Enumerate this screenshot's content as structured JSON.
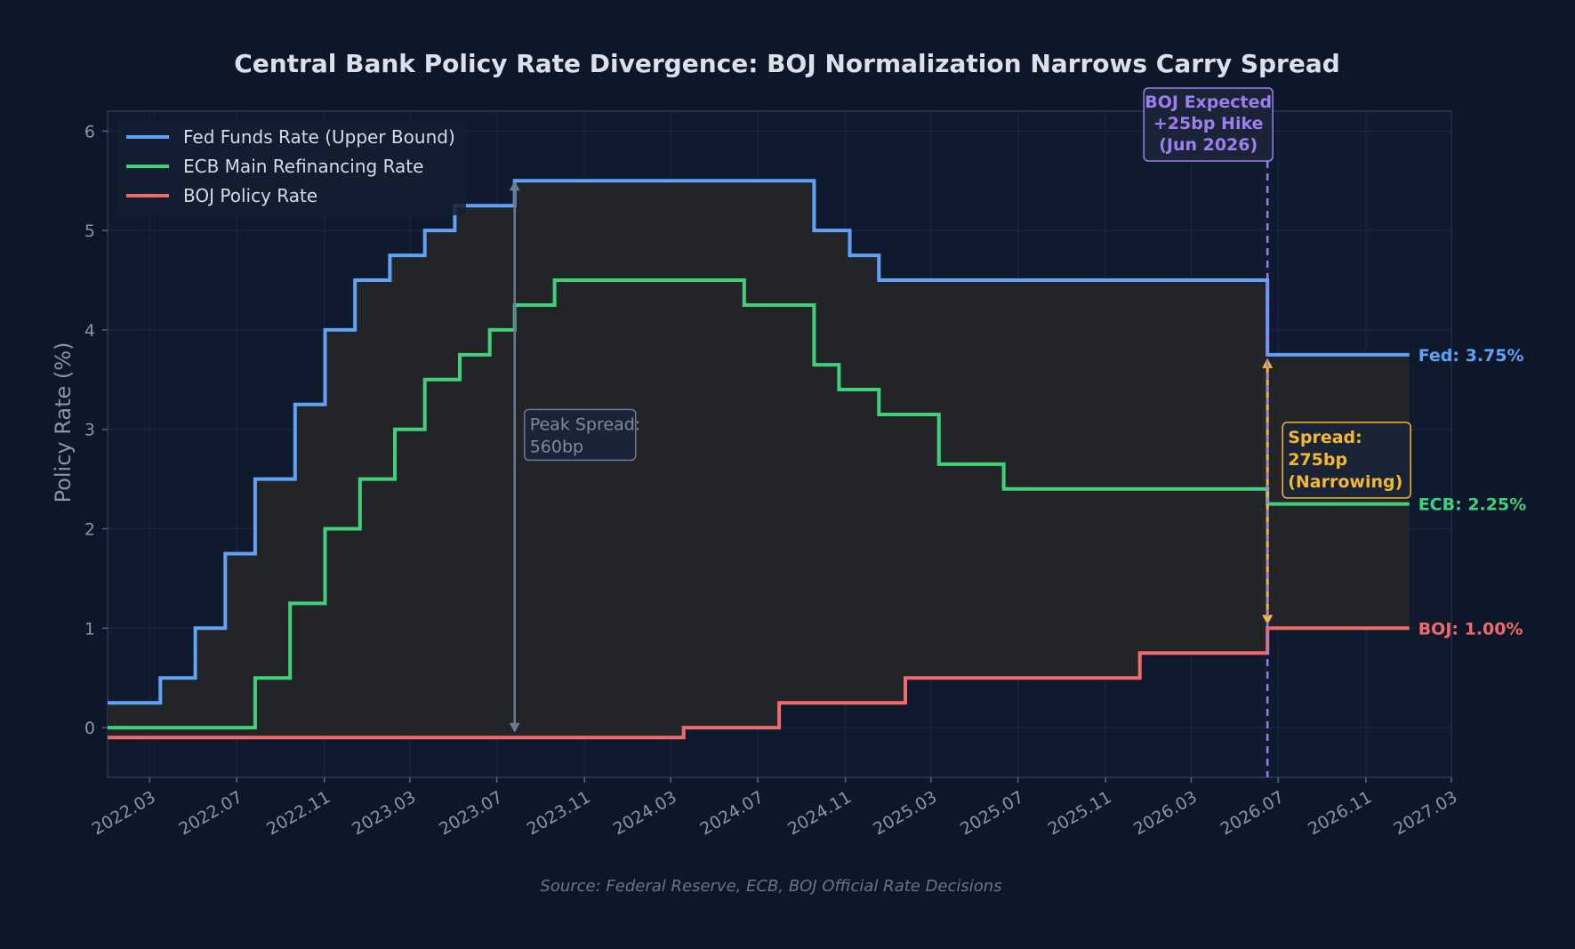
{
  "chart_data": {
    "type": "line",
    "step": "post",
    "title": "Central Bank Policy Rate Divergence: BOJ Normalization Narrows Carry Spread",
    "ylabel": "Policy Rate (%)",
    "xlabel": "",
    "source": "Source: Federal Reserve, ECB, BOJ Official Rate Decisions",
    "xlim": [
      "2022-01-01",
      "2027-03-01"
    ],
    "ylim": [
      -0.5,
      6.2
    ],
    "yticks": [
      0,
      1,
      2,
      3,
      4,
      5,
      6
    ],
    "xtick_labels": [
      "2022.03",
      "2022.07",
      "2022.11",
      "2023.03",
      "2023.07",
      "2023.11",
      "2024.03",
      "2024.07",
      "2024.11",
      "2025.03",
      "2025.07",
      "2025.11",
      "2026.03",
      "2026.07",
      "2026.11",
      "2027.03"
    ],
    "xticks": [
      "2022-03-01",
      "2022-07-01",
      "2022-11-01",
      "2023-03-01",
      "2023-07-01",
      "2023-11-01",
      "2024-03-01",
      "2024-07-01",
      "2024-11-01",
      "2025-03-01",
      "2025-07-01",
      "2025-11-01",
      "2026-03-01",
      "2026-07-01",
      "2026-11-01",
      "2027-03-01"
    ],
    "grid": true,
    "legend_position": "top-left",
    "colors": {
      "background": "#0e162a",
      "plot_background": "#101a2e",
      "spread_fill": "#222428",
      "fed": "#5ea3f7",
      "ecb": "#3fd17a",
      "boj": "#f06a6a",
      "peak_arrow": "#6b7a93",
      "current_spread": "#f2b82e",
      "boj_forecast": "#9b7ff0"
    },
    "series": [
      {
        "name": "Fed Funds Rate (Upper Bound)",
        "key": "fed",
        "points": [
          [
            "2022-01-01",
            0.25
          ],
          [
            "2022-03-16",
            0.5
          ],
          [
            "2022-05-04",
            1.0
          ],
          [
            "2022-06-15",
            1.75
          ],
          [
            "2022-07-27",
            2.5
          ],
          [
            "2022-09-21",
            3.25
          ],
          [
            "2022-11-02",
            4.0
          ],
          [
            "2022-12-14",
            4.5
          ],
          [
            "2023-02-01",
            4.75
          ],
          [
            "2023-03-22",
            5.0
          ],
          [
            "2023-05-03",
            5.25
          ],
          [
            "2023-07-26",
            5.5
          ],
          [
            "2024-09-18",
            5.0
          ],
          [
            "2024-11-07",
            4.75
          ],
          [
            "2024-12-18",
            4.5
          ],
          [
            "2026-06-16",
            3.75
          ],
          [
            "2027-01-01",
            3.75
          ]
        ],
        "end_label": "Fed: 3.75%"
      },
      {
        "name": "ECB Main Refinancing Rate",
        "key": "ecb",
        "points": [
          [
            "2022-01-01",
            0.0
          ],
          [
            "2022-07-27",
            0.5
          ],
          [
            "2022-09-14",
            1.25
          ],
          [
            "2022-11-02",
            2.0
          ],
          [
            "2022-12-21",
            2.5
          ],
          [
            "2023-02-08",
            3.0
          ],
          [
            "2023-03-22",
            3.5
          ],
          [
            "2023-05-10",
            3.75
          ],
          [
            "2023-06-21",
            4.0
          ],
          [
            "2023-07-26",
            4.25
          ],
          [
            "2023-09-20",
            4.5
          ],
          [
            "2024-06-12",
            4.25
          ],
          [
            "2024-09-18",
            3.65
          ],
          [
            "2024-10-23",
            3.4
          ],
          [
            "2024-12-18",
            3.15
          ],
          [
            "2025-03-12",
            2.65
          ],
          [
            "2025-06-11",
            2.4
          ],
          [
            "2026-06-16",
            2.25
          ],
          [
            "2027-01-01",
            2.25
          ]
        ],
        "end_label": "ECB: 2.25%"
      },
      {
        "name": "BOJ Policy Rate",
        "key": "boj",
        "points": [
          [
            "2022-01-01",
            -0.1
          ],
          [
            "2024-03-19",
            0.0
          ],
          [
            "2024-07-31",
            0.25
          ],
          [
            "2025-01-24",
            0.5
          ],
          [
            "2025-12-19",
            0.75
          ],
          [
            "2026-06-16",
            1.0
          ],
          [
            "2027-01-01",
            1.0
          ]
        ],
        "end_label": "BOJ: 1.00%"
      }
    ],
    "annotations": {
      "peak_spread": {
        "date": "2023-07-26",
        "from": -0.05,
        "to": 5.5,
        "lines": [
          "Peak Spread:",
          "560bp"
        ]
      },
      "current_spread": {
        "date": "2026-06-16",
        "from": 1.0,
        "to": 3.75,
        "lines": [
          "Spread:",
          "275bp",
          "(Narrowing)"
        ]
      },
      "boj_expected": {
        "date": "2026-06-16",
        "lines": [
          "BOJ Expected",
          "+25bp Hike",
          "(Jun 2026)"
        ]
      }
    }
  }
}
